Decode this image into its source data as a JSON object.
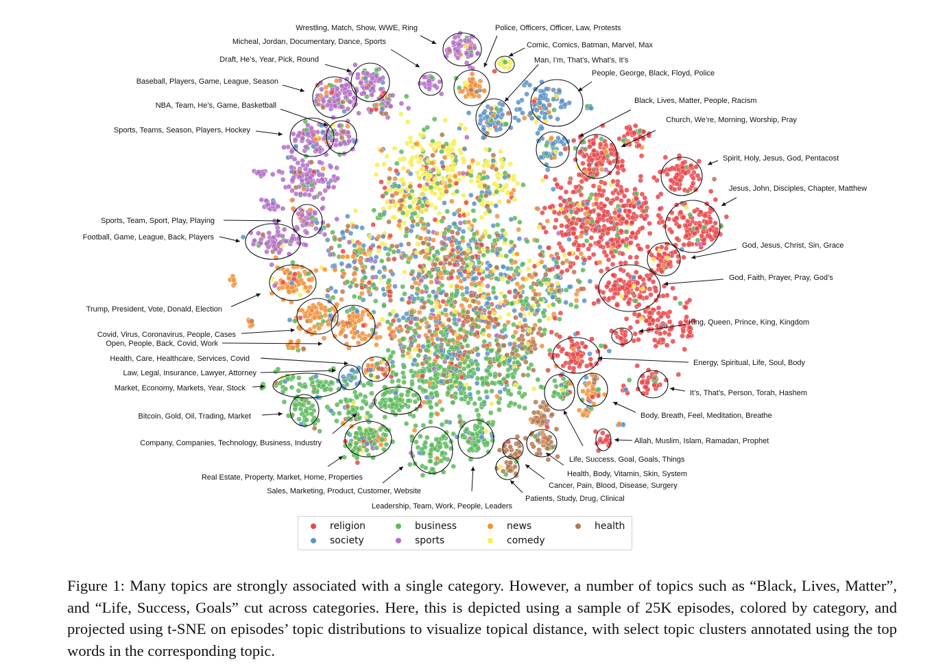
{
  "chart_data": {
    "type": "scatter",
    "title": "",
    "xlabel": "",
    "ylabel": "",
    "grid": false,
    "legend_placement": "bottom-center",
    "series": [
      {
        "name": "religion",
        "color": "#e8474a"
      },
      {
        "name": "society",
        "color": "#5b93c8"
      },
      {
        "name": "business",
        "color": "#5cb85c"
      },
      {
        "name": "sports",
        "color": "#b36ec4"
      },
      {
        "name": "news",
        "color": "#f3913a"
      },
      {
        "name": "comedy",
        "color": "#f7ef4f"
      },
      {
        "name": "health",
        "color": "#b47851"
      }
    ],
    "annotations": [
      {
        "id": "a1",
        "text": "Wrestling, Match, Show, WWE, Ring"
      },
      {
        "id": "a2",
        "text": "Micheal, Jordan, Documentary, Dance, Sports"
      },
      {
        "id": "a3",
        "text": "Draft, He’s, Year, Pick, Round"
      },
      {
        "id": "a4",
        "text": "Baseball, Players, Game, League, Season"
      },
      {
        "id": "a5",
        "text": "NBA, Team, He’s, Game, Basketball"
      },
      {
        "id": "a6",
        "text": "Sports, Teams, Season, Players, Hockey"
      },
      {
        "id": "a7",
        "text": "Sports, Team, Sport, Play, Playing"
      },
      {
        "id": "a8",
        "text": "Football, Game, League, Back, Players"
      },
      {
        "id": "a9",
        "text": "Trump, President, Vote, Donald, Election"
      },
      {
        "id": "a10",
        "text": "Covid, Virus, Coronavirus, People, Cases"
      },
      {
        "id": "a11",
        "text": "Open, People, Back, Covid, Work"
      },
      {
        "id": "a12",
        "text": "Health, Care, Healthcare, Services, Covid"
      },
      {
        "id": "a13",
        "text": "Law, Legal, Insurance, Lawyer, Attorney"
      },
      {
        "id": "a14",
        "text": "Market, Economy, Markets, Year, Stock"
      },
      {
        "id": "a15",
        "text": "Bitcoin, Gold, Oil, Trading, Market"
      },
      {
        "id": "a16",
        "text": "Company, Companies, Technology, Business, Industry"
      },
      {
        "id": "a17",
        "text": "Real Estate, Property, Market, Home, Properties"
      },
      {
        "id": "a18",
        "text": "Sales, Marketing, Product, Customer, Website"
      },
      {
        "id": "a19",
        "text": "Leadership, Team, Work, People, Leaders"
      },
      {
        "id": "a20",
        "text": "Police, Officers, Officer, Law, Protests"
      },
      {
        "id": "a21",
        "text": "Comic, Comics, Batman, Marvel, Max"
      },
      {
        "id": "a22",
        "text": "Man, I’m, That’s, What’s, It’s"
      },
      {
        "id": "a23",
        "text": "People, George, Black, Floyd, Police"
      },
      {
        "id": "a24",
        "text": "Black, Lives, Matter, People, Racism"
      },
      {
        "id": "a25",
        "text": "Church, We’re, Morning, Worship, Pray"
      },
      {
        "id": "a26",
        "text": "Spirit, Holy, Jesus, God, Pentacost"
      },
      {
        "id": "a27",
        "text": "Jesus, John, Disciples, Chapter, Matthew"
      },
      {
        "id": "a28",
        "text": "God, Jesus, Christ, Sin, Grace"
      },
      {
        "id": "a29",
        "text": "God, Faith, Prayer, Pray, God’s"
      },
      {
        "id": "a30",
        "text": "King, Queen, Prince, King, Kingdom"
      },
      {
        "id": "a31",
        "text": "Energy, Spiritual, Life, Soul, Body"
      },
      {
        "id": "a32",
        "text": "It’s, That’s, Person, Torah, Hashem"
      },
      {
        "id": "a33",
        "text": "Body, Breath, Feel, Meditation, Breathe"
      },
      {
        "id": "a34",
        "text": "Allah, Muslim, Islam, Ramadan, Prophet"
      },
      {
        "id": "a35",
        "text": "Life, Success, Goal, Goals, Things"
      },
      {
        "id": "a36",
        "text": "Health, Body, Vitamin, Skin, System"
      },
      {
        "id": "a37",
        "text": "Cancer, Pain, Blood, Disease, Surgery"
      },
      {
        "id": "a38",
        "text": "Patients, Study, Drug, Clinical"
      }
    ]
  },
  "caption": "Figure 1: Many topics are strongly associated with a single category. However, a number of topics such as “Black, Lives, Matter”, and “Life, Success, Goals” cut across categories.  Here, this is depicted using a sample of 25K episodes, colored by category, and projected using t-SNE on episodes’ topic distributions to visualize topical distance, with select topic clusters annotated using the top words in the corresponding topic."
}
